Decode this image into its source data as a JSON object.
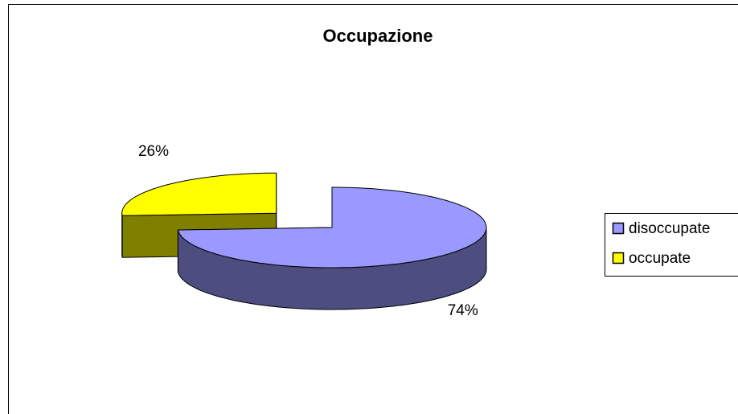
{
  "chart_data": {
    "type": "pie",
    "title": "Occupazione",
    "categories": [
      "disoccupate",
      "occupate"
    ],
    "values": [
      74,
      26
    ],
    "value_labels": [
      "74%",
      "26%"
    ],
    "colors": [
      "#9999ff",
      "#ffff00"
    ],
    "legend": "right"
  }
}
